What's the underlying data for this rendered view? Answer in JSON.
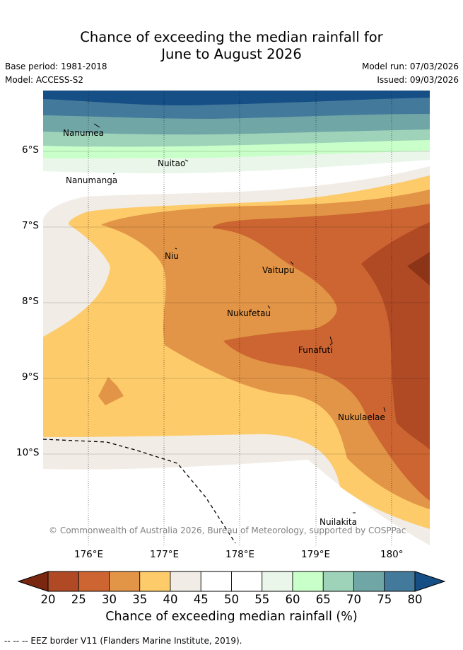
{
  "title_line1": "Chance of exceeding the median rainfall for",
  "title_line2": "June to August 2026",
  "base_period": "Base period: 1981-2018",
  "model": "Model: ACCESS-S2",
  "model_run": "Model run: 07/03/2026",
  "issued": "Issued: 09/03/2026",
  "lat_ticks": [
    "6°S",
    "7°S",
    "8°S",
    "9°S",
    "10°S"
  ],
  "lon_ticks": [
    "176°E",
    "177°E",
    "178°E",
    "179°E",
    "180°"
  ],
  "places": [
    {
      "name": "Nanumea"
    },
    {
      "name": "Nuitao"
    },
    {
      "name": "Nanumanga"
    },
    {
      "name": "Niu"
    },
    {
      "name": "Vaitupu"
    },
    {
      "name": "Nukufetau"
    },
    {
      "name": "Funafuti"
    },
    {
      "name": "Nukulaelae"
    },
    {
      "name": "Nuilakita"
    }
  ],
  "copyright": "© Commonwealth of Australia 2026, Bureau of Meteorology, supported by COSPPac",
  "colorbar": {
    "ticks": [
      "20",
      "25",
      "30",
      "35",
      "40",
      "45",
      "50",
      "55",
      "60",
      "65",
      "70",
      "75",
      "80"
    ],
    "colors": [
      "#7a2712",
      "#b04a25",
      "#cc6531",
      "#e29447",
      "#fdcb6a",
      "#f1ece6",
      "#ffffff",
      "#ffffff",
      "#eaf6ea",
      "#c9ffc9",
      "#9ed2b9",
      "#70a6a6",
      "#43799a",
      "#164f86"
    ],
    "label": "Chance of exceeding median rainfall (%)"
  },
  "eez_legend": "-- -- -- EEZ border V11 (Flanders Marine Institute, 2019)."
}
